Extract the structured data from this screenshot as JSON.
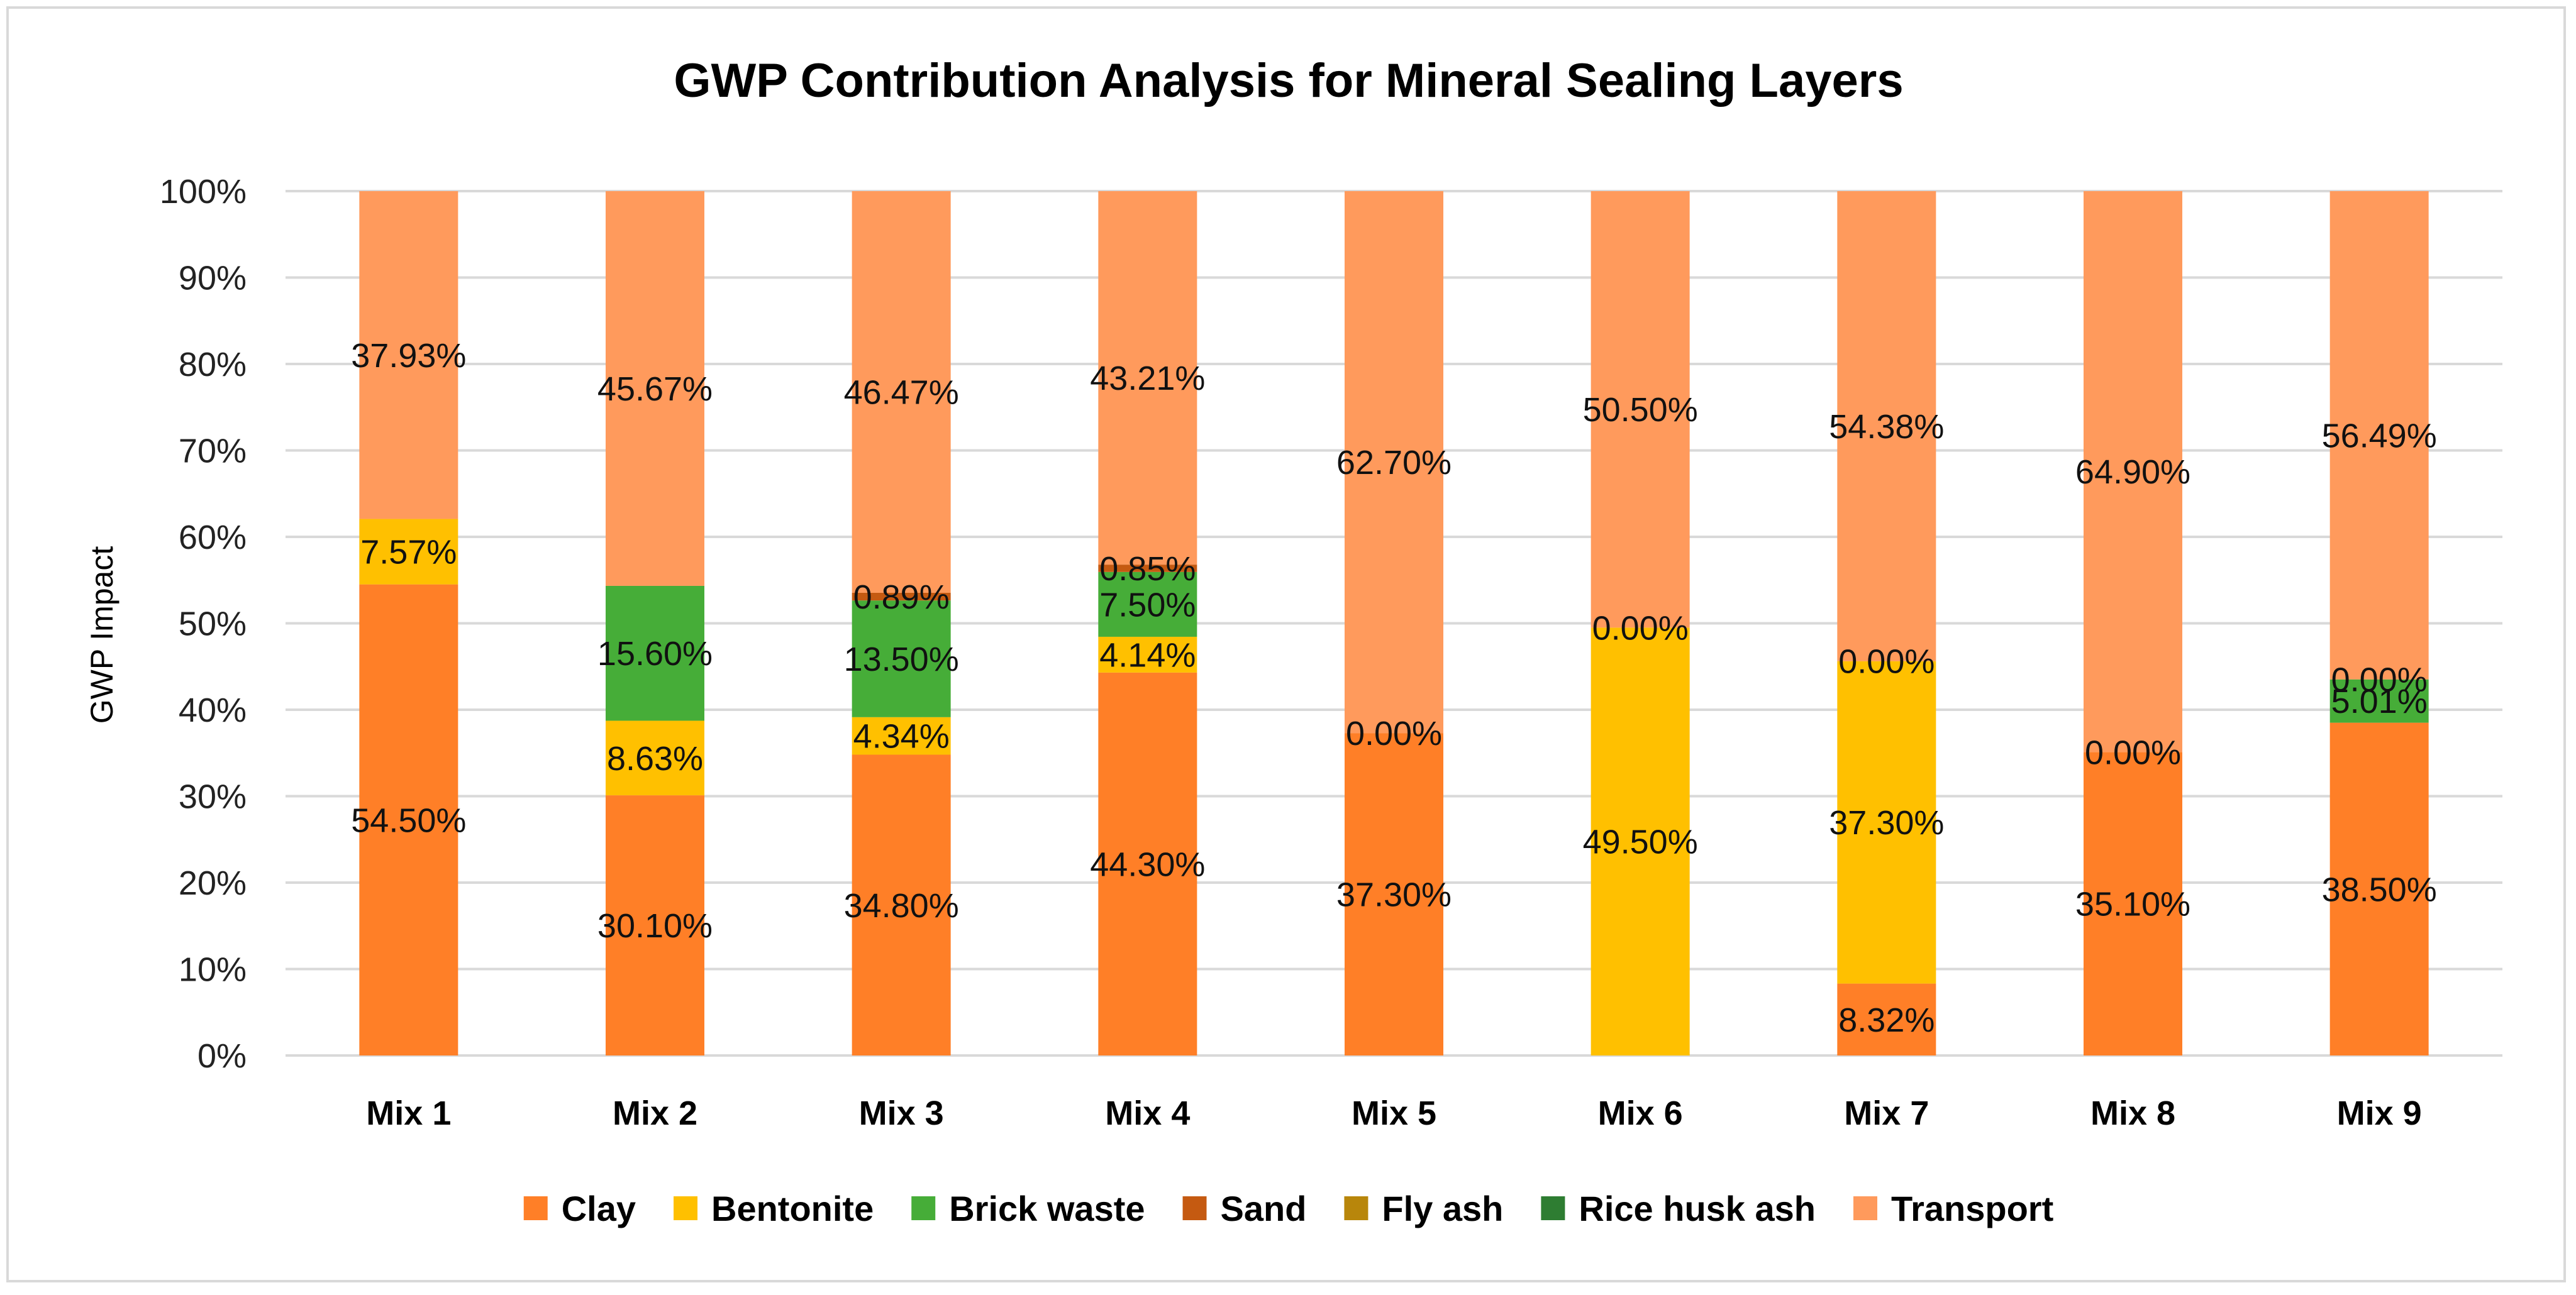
{
  "chart_data": {
    "type": "bar",
    "stacked": true,
    "title": "GWP Contribution Analysis for Mineral Sealing Layers",
    "ylabel": "GWP Impact",
    "ylim": [
      0,
      100
    ],
    "y_ticks": [
      "0%",
      "10%",
      "20%",
      "30%",
      "40%",
      "50%",
      "60%",
      "70%",
      "80%",
      "90%",
      "100%"
    ],
    "grid": true,
    "legend_position": "bottom",
    "categories": [
      "Mix 1",
      "Mix 2",
      "Mix 3",
      "Mix 4",
      "Mix 5",
      "Mix 6",
      "Mix 7",
      "Mix 8",
      "Mix 9"
    ],
    "series": [
      {
        "name": "Clay",
        "color": "#FF7F27",
        "values": [
          54.5,
          30.1,
          34.8,
          44.3,
          37.3,
          0,
          8.32,
          35.1,
          38.5
        ],
        "labels": [
          "54.50%",
          "30.10%",
          "34.80%",
          "44.30%",
          "37.30%",
          null,
          "8.32%",
          "35.10%",
          "38.50%"
        ]
      },
      {
        "name": "Bentonite",
        "color": "#FFC000",
        "values": [
          7.57,
          8.63,
          4.34,
          4.14,
          0,
          49.5,
          37.3,
          0,
          0
        ],
        "labels": [
          "7.57%",
          "8.63%",
          "4.34%",
          "4.14%",
          "0.00%",
          "49.50%",
          "37.30%",
          "0.00%",
          null
        ]
      },
      {
        "name": "Brick waste",
        "color": "#46AD38",
        "values": [
          0,
          15.6,
          13.5,
          7.5,
          0,
          0,
          0,
          0,
          5.01
        ],
        "labels": [
          null,
          "15.60%",
          "13.50%",
          "7.50%",
          null,
          "0.00%",
          "0.00%",
          null,
          "5.01%"
        ]
      },
      {
        "name": "Sand",
        "color": "#C55A11",
        "values": [
          0,
          0,
          0.89,
          0.85,
          0,
          0,
          0,
          0,
          0
        ],
        "labels": [
          null,
          null,
          "0.89%",
          "0.85%",
          null,
          null,
          null,
          null,
          "0.00%"
        ]
      },
      {
        "name": "Fly ash",
        "color": "#B8860B",
        "values": [
          0,
          0,
          0,
          0,
          0,
          0,
          0,
          0,
          0
        ],
        "labels": [
          null,
          null,
          null,
          null,
          null,
          null,
          null,
          null,
          null
        ]
      },
      {
        "name": "Rice husk ash",
        "color": "#2E7D32",
        "values": [
          0,
          0,
          0,
          0,
          0,
          0,
          0,
          0,
          0
        ],
        "labels": [
          null,
          null,
          null,
          null,
          null,
          null,
          null,
          null,
          null
        ]
      },
      {
        "name": "Transport",
        "color": "#FF9A5C",
        "values": [
          37.93,
          45.67,
          46.47,
          43.21,
          62.7,
          50.5,
          54.38,
          64.9,
          56.49
        ],
        "labels": [
          "37.93%",
          "45.67%",
          "46.47%",
          "43.21%",
          "62.70%",
          "50.50%",
          "54.38%",
          "64.90%",
          "56.49%"
        ]
      }
    ]
  }
}
